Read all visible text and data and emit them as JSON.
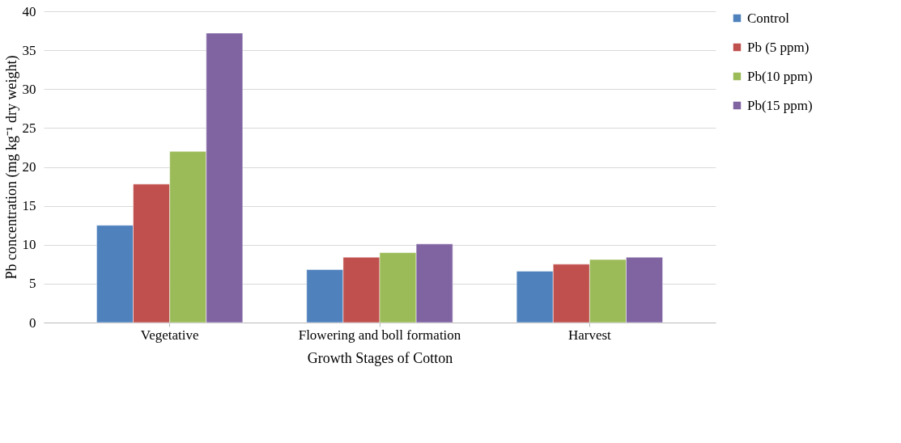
{
  "chart_data": {
    "type": "bar",
    "xlabel": "Growth Stages of Cotton",
    "ylabel": "Pb concentration (mg kg⁻¹ dry weight)",
    "categories": [
      "Vegetative",
      "Flowering and boll formation",
      "Harvest"
    ],
    "series": [
      {
        "name": "Control",
        "color": "#4f81bd",
        "values": [
          12.5,
          6.8,
          6.6
        ]
      },
      {
        "name": "Pb (5 ppm)",
        "color": "#c0504d",
        "values": [
          17.8,
          8.4,
          7.5
        ]
      },
      {
        "name": "Pb(10 ppm)",
        "color": "#9bbb59",
        "values": [
          22.0,
          9.0,
          8.1
        ]
      },
      {
        "name": "Pb(15 ppm)",
        "color": "#8064a2",
        "values": [
          37.2,
          10.1,
          8.4
        ]
      }
    ],
    "ylim": [
      0,
      40
    ],
    "yticks": [
      0,
      5,
      10,
      15,
      20,
      25,
      30,
      35,
      40
    ],
    "grid": "y",
    "legend": "right"
  }
}
